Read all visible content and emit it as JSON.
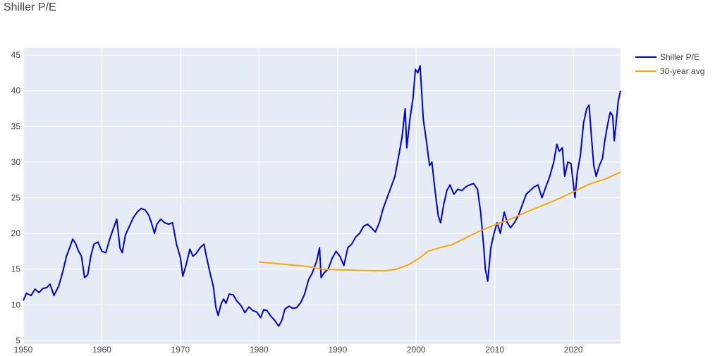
{
  "chart_data": {
    "type": "line",
    "title": "Shiller P/E",
    "xlabel": "",
    "ylabel": "",
    "xlim": [
      1950,
      2026
    ],
    "ylim": [
      4.5,
      46
    ],
    "x_ticks": [
      1950,
      1960,
      1970,
      1980,
      1990,
      2000,
      2010,
      2020
    ],
    "y_ticks": [
      5,
      10,
      15,
      20,
      25,
      30,
      35,
      40,
      45
    ],
    "grid": true,
    "legend_position": "top-right",
    "colors": {
      "plot_bg": "#e5ecf6",
      "grid": "#ffffff",
      "axis_text": "#444444"
    },
    "series": [
      {
        "name": "Shiller P/E",
        "color": "#0000dd",
        "points": [
          [
            1950.0,
            10.6
          ],
          [
            1950.4,
            11.6
          ],
          [
            1951.0,
            11.3
          ],
          [
            1951.5,
            12.2
          ],
          [
            1952.0,
            11.7
          ],
          [
            1952.5,
            12.3
          ],
          [
            1953.0,
            12.4
          ],
          [
            1953.4,
            12.9
          ],
          [
            1953.9,
            11.3
          ],
          [
            1954.5,
            12.6
          ],
          [
            1955.0,
            14.5
          ],
          [
            1955.5,
            16.8
          ],
          [
            1956.0,
            18.3
          ],
          [
            1956.3,
            19.2
          ],
          [
            1956.7,
            18.5
          ],
          [
            1957.0,
            17.6
          ],
          [
            1957.4,
            16.8
          ],
          [
            1957.8,
            13.8
          ],
          [
            1958.2,
            14.2
          ],
          [
            1958.6,
            16.8
          ],
          [
            1959.0,
            18.5
          ],
          [
            1959.5,
            18.8
          ],
          [
            1960.0,
            17.5
          ],
          [
            1960.5,
            17.3
          ],
          [
            1961.0,
            19.2
          ],
          [
            1961.5,
            20.8
          ],
          [
            1961.9,
            22.0
          ],
          [
            1962.3,
            18.0
          ],
          [
            1962.6,
            17.3
          ],
          [
            1963.0,
            19.8
          ],
          [
            1963.5,
            21.0
          ],
          [
            1964.0,
            22.2
          ],
          [
            1964.5,
            23.0
          ],
          [
            1965.0,
            23.5
          ],
          [
            1965.5,
            23.3
          ],
          [
            1966.0,
            22.5
          ],
          [
            1966.3,
            21.5
          ],
          [
            1966.7,
            20.0
          ],
          [
            1967.0,
            21.3
          ],
          [
            1967.5,
            22.0
          ],
          [
            1968.0,
            21.5
          ],
          [
            1968.5,
            21.3
          ],
          [
            1969.0,
            21.5
          ],
          [
            1969.5,
            18.5
          ],
          [
            1970.0,
            16.6
          ],
          [
            1970.3,
            14.0
          ],
          [
            1970.7,
            15.5
          ],
          [
            1971.2,
            17.8
          ],
          [
            1971.6,
            16.8
          ],
          [
            1972.0,
            17.2
          ],
          [
            1972.5,
            18.0
          ],
          [
            1973.0,
            18.5
          ],
          [
            1973.3,
            16.8
          ],
          [
            1973.8,
            14.3
          ],
          [
            1974.2,
            12.5
          ],
          [
            1974.5,
            9.7
          ],
          [
            1974.8,
            8.5
          ],
          [
            1975.2,
            10.2
          ],
          [
            1975.5,
            10.8
          ],
          [
            1975.8,
            10.2
          ],
          [
            1976.2,
            11.5
          ],
          [
            1976.7,
            11.4
          ],
          [
            1977.2,
            10.5
          ],
          [
            1977.7,
            9.9
          ],
          [
            1978.2,
            8.9
          ],
          [
            1978.7,
            9.7
          ],
          [
            1979.2,
            9.2
          ],
          [
            1979.7,
            9.0
          ],
          [
            1980.2,
            8.2
          ],
          [
            1980.6,
            9.3
          ],
          [
            1981.0,
            9.2
          ],
          [
            1981.5,
            8.4
          ],
          [
            1982.0,
            7.8
          ],
          [
            1982.5,
            7.0
          ],
          [
            1982.9,
            7.8
          ],
          [
            1983.3,
            9.4
          ],
          [
            1983.8,
            9.8
          ],
          [
            1984.3,
            9.5
          ],
          [
            1984.8,
            9.6
          ],
          [
            1985.3,
            10.3
          ],
          [
            1985.8,
            11.5
          ],
          [
            1986.3,
            13.5
          ],
          [
            1986.8,
            14.5
          ],
          [
            1987.3,
            16.0
          ],
          [
            1987.7,
            18.0
          ],
          [
            1987.9,
            13.8
          ],
          [
            1988.3,
            14.5
          ],
          [
            1988.8,
            15.0
          ],
          [
            1989.3,
            16.5
          ],
          [
            1989.8,
            17.5
          ],
          [
            1990.3,
            16.8
          ],
          [
            1990.8,
            15.5
          ],
          [
            1991.3,
            18.0
          ],
          [
            1991.8,
            18.5
          ],
          [
            1992.3,
            19.5
          ],
          [
            1992.8,
            20.0
          ],
          [
            1993.3,
            21.0
          ],
          [
            1993.8,
            21.3
          ],
          [
            1994.3,
            20.8
          ],
          [
            1994.8,
            20.2
          ],
          [
            1995.3,
            21.5
          ],
          [
            1995.8,
            23.5
          ],
          [
            1996.3,
            25.0
          ],
          [
            1996.8,
            26.5
          ],
          [
            1997.3,
            28.0
          ],
          [
            1997.8,
            31.0
          ],
          [
            1998.2,
            33.5
          ],
          [
            1998.6,
            37.5
          ],
          [
            1998.8,
            32.0
          ],
          [
            1999.2,
            36.0
          ],
          [
            1999.6,
            39.0
          ],
          [
            1999.9,
            43.0
          ],
          [
            2000.2,
            42.5
          ],
          [
            2000.5,
            43.5
          ],
          [
            2000.9,
            36.0
          ],
          [
            2001.3,
            33.0
          ],
          [
            2001.7,
            29.5
          ],
          [
            2002.0,
            30.0
          ],
          [
            2002.4,
            26.0
          ],
          [
            2002.8,
            22.5
          ],
          [
            2003.1,
            21.5
          ],
          [
            2003.5,
            24.0
          ],
          [
            2003.9,
            26.0
          ],
          [
            2004.3,
            26.8
          ],
          [
            2004.8,
            25.5
          ],
          [
            2005.3,
            26.2
          ],
          [
            2005.8,
            26.0
          ],
          [
            2006.3,
            26.5
          ],
          [
            2006.8,
            26.8
          ],
          [
            2007.3,
            27.0
          ],
          [
            2007.8,
            26.2
          ],
          [
            2008.2,
            23.0
          ],
          [
            2008.6,
            18.0
          ],
          [
            2008.8,
            15.0
          ],
          [
            2009.1,
            13.3
          ],
          [
            2009.5,
            18.0
          ],
          [
            2009.9,
            20.0
          ],
          [
            2010.3,
            21.5
          ],
          [
            2010.7,
            20.0
          ],
          [
            2011.2,
            23.0
          ],
          [
            2011.6,
            21.5
          ],
          [
            2012.0,
            20.8
          ],
          [
            2012.5,
            21.5
          ],
          [
            2013.0,
            22.5
          ],
          [
            2013.5,
            24.0
          ],
          [
            2014.0,
            25.5
          ],
          [
            2014.5,
            26.0
          ],
          [
            2015.0,
            26.5
          ],
          [
            2015.5,
            26.8
          ],
          [
            2016.0,
            25.0
          ],
          [
            2016.5,
            26.5
          ],
          [
            2017.0,
            28.0
          ],
          [
            2017.5,
            30.0
          ],
          [
            2017.9,
            32.5
          ],
          [
            2018.2,
            31.5
          ],
          [
            2018.6,
            32.0
          ],
          [
            2018.9,
            28.0
          ],
          [
            2019.3,
            30.0
          ],
          [
            2019.7,
            29.8
          ],
          [
            2020.2,
            25.0
          ],
          [
            2020.5,
            28.5
          ],
          [
            2020.9,
            31.0
          ],
          [
            2021.3,
            35.5
          ],
          [
            2021.7,
            37.5
          ],
          [
            2022.0,
            38.0
          ],
          [
            2022.3,
            33.5
          ],
          [
            2022.6,
            29.5
          ],
          [
            2022.9,
            28.0
          ],
          [
            2023.3,
            29.5
          ],
          [
            2023.7,
            30.5
          ],
          [
            2024.0,
            33.0
          ],
          [
            2024.4,
            35.5
          ],
          [
            2024.7,
            37.0
          ],
          [
            2025.0,
            36.5
          ],
          [
            2025.2,
            33.0
          ],
          [
            2025.4,
            35.0
          ],
          [
            2025.7,
            38.5
          ],
          [
            2026.0,
            40.0
          ]
        ]
      },
      {
        "name": "30-year avg",
        "color": "#ffa500",
        "points": [
          [
            1980.0,
            16.0
          ],
          [
            1982.0,
            15.8
          ],
          [
            1984.0,
            15.6
          ],
          [
            1986.0,
            15.4
          ],
          [
            1988.0,
            15.0
          ],
          [
            1990.0,
            14.9
          ],
          [
            1992.0,
            14.85
          ],
          [
            1994.0,
            14.8
          ],
          [
            1996.0,
            14.75
          ],
          [
            1997.5,
            15.0
          ],
          [
            1999.0,
            15.6
          ],
          [
            2000.5,
            16.6
          ],
          [
            2001.5,
            17.5
          ],
          [
            2003.0,
            18.0
          ],
          [
            2004.5,
            18.4
          ],
          [
            2006.0,
            19.2
          ],
          [
            2008.0,
            20.3
          ],
          [
            2010.0,
            21.2
          ],
          [
            2012.0,
            22.0
          ],
          [
            2014.0,
            23.0
          ],
          [
            2016.0,
            23.9
          ],
          [
            2018.0,
            24.8
          ],
          [
            2020.0,
            25.8
          ],
          [
            2022.0,
            26.9
          ],
          [
            2024.0,
            27.6
          ],
          [
            2026.0,
            28.6
          ]
        ]
      }
    ]
  }
}
